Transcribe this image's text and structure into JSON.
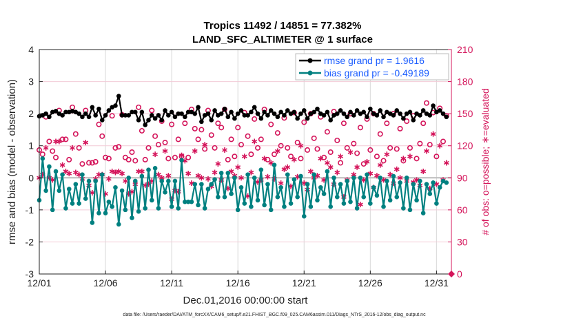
{
  "chart_data": {
    "type": "line",
    "title": "Tropics 11492 / 14851 = 77.382%",
    "subtitle": "LAND_SFC_ALTIMETER @ 1 surface",
    "xlabel": "Dec.01,2016 00:00:00 start",
    "ylabel": "rmse and bias (model - observation)",
    "y2label": "# of obs: o=possible; ∗=evaluated",
    "footer": "data file: /Users/raeder/DAI/ATM_forcXX/CAM6_setup/f.e21.FHIST_BGC.f09_025.CAM6assim.011/Diags_NTrS_2016-12/obs_diag_output.nc",
    "x_unit": "days since 12/01 (6-hourly)",
    "xlim_days": [
      0,
      31.125
    ],
    "ylim": [
      -3,
      4
    ],
    "y2lim": [
      0,
      210
    ],
    "xticks": [
      "12/01",
      "12/06",
      "12/11",
      "12/16",
      "12/21",
      "12/26",
      "12/31"
    ],
    "yticks": [
      "-3",
      "-2",
      "-1",
      "0",
      "1",
      "2",
      "3",
      "4"
    ],
    "y2ticks": [
      "0",
      "30",
      "60",
      "90",
      "120",
      "150",
      "180",
      "210"
    ],
    "grid": true,
    "legend_placement": "top-right",
    "colors": {
      "rmse": "#000000",
      "bias": "#008080",
      "obs": "#d4145a",
      "grid_v": "#d9d9d9",
      "grid_h": "#f2c9d6"
    },
    "series": [
      {
        "name": "rmse grand pr = 1.9616",
        "axis": "left",
        "marker": "filled-circle",
        "values": [
          1.92,
          1.95,
          2.0,
          1.9,
          2.05,
          2.08,
          2.0,
          1.95,
          2.05,
          2.05,
          2.08,
          2.05,
          2.0,
          1.9,
          2.0,
          1.9,
          2.2,
          1.95,
          2.15,
          1.8,
          1.95,
          2.1,
          2.2,
          2.25,
          2.55,
          1.95,
          1.95,
          1.95,
          2.05,
          2.05,
          1.8,
          2.05,
          1.65,
          1.8,
          1.95,
          1.85,
          1.95,
          1.8,
          2.1,
          1.95,
          2.05,
          1.9,
          2.0,
          2.0,
          1.9,
          2.05,
          2.05,
          2.0,
          2.2,
          1.75,
          1.95,
          2.0,
          1.8,
          2.1,
          1.95,
          2.0,
          2.15,
          1.9,
          2.05,
          1.85,
          2.0,
          2.1,
          1.95,
          1.95,
          2.05,
          2.2,
          2.0,
          1.85,
          2.05,
          1.95,
          2.1,
          2.0,
          1.9,
          2.05,
          1.95,
          2.1,
          2.0,
          2.05,
          1.85,
          2.0,
          2.1,
          1.85,
          2.0,
          2.05,
          2.15,
          2.0,
          1.95,
          2.05,
          1.8,
          1.95,
          2.0,
          2.1,
          2.0,
          1.9,
          2.05,
          1.95,
          2.1,
          2.0,
          2.05,
          1.9,
          2.15,
          2.0,
          1.95,
          2.1,
          1.9,
          2.05,
          2.0,
          1.95,
          2.1,
          2.0,
          1.85,
          2.0,
          2.05,
          1.8,
          2.0,
          1.95,
          2.1,
          2.0,
          1.95,
          2.25,
          2.05,
          2.1,
          2.0,
          1.9
        ]
      },
      {
        "name": "bias grand pr = -0.49189",
        "axis": "left",
        "marker": "filled-circle",
        "values": [
          -0.7,
          0.6,
          -0.4,
          0.35,
          -1.0,
          0.2,
          -0.4,
          0.1,
          -0.95,
          -0.35,
          -0.8,
          -0.2,
          -0.8,
          0.1,
          -0.65,
          -0.1,
          -1.4,
          -0.1,
          -1.1,
          0.1,
          -1.1,
          -0.75,
          -0.9,
          -0.3,
          -1.45,
          -0.4,
          -1.0,
          0.0,
          -1.25,
          -0.1,
          -1.05,
          0.05,
          -0.95,
          0.25,
          -0.7,
          0.3,
          -0.95,
          -0.1,
          -0.45,
          -0.1,
          -0.9,
          -0.1,
          -0.95,
          0.55,
          -0.75,
          -0.75,
          -0.75,
          -0.2,
          -0.85,
          -0.2,
          -0.95,
          -0.35,
          -0.2,
          -0.05,
          -0.6,
          0.15,
          -0.6,
          0.15,
          -0.5,
          0.0,
          -1.0,
          -0.3,
          -0.8,
          0.1,
          -0.9,
          0.0,
          -0.7,
          0.25,
          -0.85,
          -0.2,
          -1.0,
          0.4,
          -0.6,
          -0.3,
          -0.9,
          0.1,
          -0.8,
          -0.05,
          -0.6,
          0.05,
          -1.2,
          -0.2,
          -0.9,
          0.1,
          -0.7,
          -0.3,
          -0.5,
          0.2,
          -0.9,
          0.0,
          -0.6,
          -0.2,
          -0.8,
          -0.1,
          -0.75,
          0.0,
          -0.95,
          0.0,
          -0.6,
          0.1,
          -0.8,
          -0.3,
          -0.55,
          0.0,
          -0.9,
          -0.1,
          -0.7,
          0.05,
          -0.6,
          -0.15,
          -0.95,
          0.0,
          -1.0,
          -0.2,
          -0.7,
          -0.1,
          -1.1,
          -0.2,
          -0.5,
          -0.15,
          -0.8,
          -0.3,
          -0.1,
          -0.15
        ]
      },
      {
        "axis": "right",
        "marker": "open-circle",
        "values": [
          116,
          112,
          147,
          124,
          115,
          109,
          153,
          126,
          126,
          107,
          156,
          131,
          118,
          103,
          153,
          104,
          104,
          105,
          140,
          129,
          109,
          108,
          148,
          118,
          119,
          149,
          109,
          107,
          114,
          106,
          156,
          134,
          107,
          118,
          153,
          129,
          121,
          143,
          123,
          108,
          140,
          109,
          126,
          110,
          141,
          109,
          154,
          136,
          126,
          135,
          117,
          153,
          130,
          118,
          141,
          137,
          154,
          107,
          126,
          110,
          137,
          121,
          151,
          129,
          112,
          145,
          118,
          126,
          154,
          107,
          140,
          112,
          132,
          120,
          146,
          118,
          110,
          151,
          123,
          108,
          142,
          116,
          150,
          127,
          117,
          147,
          109,
          133,
          114,
          152,
          125,
          104,
          141,
          118,
          150,
          122,
          113,
          137,
          103,
          145,
          116,
          150,
          110,
          131,
          106,
          141,
          118,
          150,
          117,
          136,
          106,
          143,
          118,
          148,
          108,
          122,
          141,
          160,
          121,
          151,
          110,
          155,
          124,
          148
        ]
      },
      {
        "axis": "right",
        "marker": "asterisk",
        "values": [
          90,
          93,
          118,
          90,
          88,
          124,
          124,
          102,
          96,
          94,
          118,
          95,
          93,
          89,
          123,
          83,
          76,
          89,
          93,
          93,
          75,
          89,
          96,
          95,
          96,
          94,
          87,
          75,
          77,
          84,
          96,
          96,
          83,
          84,
          87,
          112,
          93,
          90,
          115,
          92,
          70,
          78,
          77,
          111,
          106,
          94,
          85,
          115,
          92,
          90,
          121,
          89,
          82,
          95,
          103,
          88,
          116,
          80,
          96,
          92,
          100,
          90,
          110,
          73,
          95,
          124,
          86,
          88,
          108,
          91,
          104,
          89,
          115,
          85,
          98,
          100,
          82,
          107,
          91,
          120,
          85,
          79,
          96,
          90,
          92,
          108,
          88,
          104,
          100,
          84,
          95,
          110,
          72,
          88,
          114,
          93,
          100,
          65,
          88,
          105,
          94,
          81,
          92,
          102,
          88,
          112,
          93,
          85,
          98,
          90,
          108,
          87,
          110,
          86,
          88,
          83,
          96,
          115,
          80,
          131,
          84,
          120,
          88,
          104
        ]
      }
    ]
  }
}
